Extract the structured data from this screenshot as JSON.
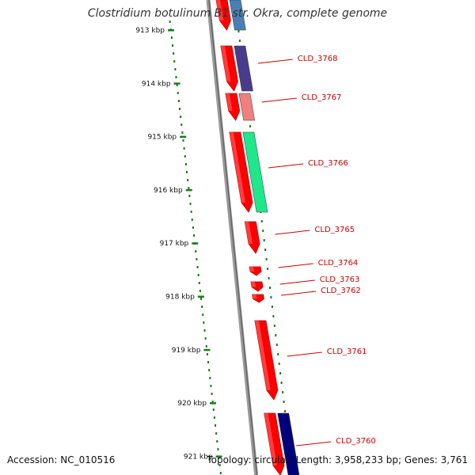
{
  "title": "Clostridium botulinum B1 str. Okra, complete genome",
  "accession": "Accession: NC_010516",
  "summary": "Topology: circular; Length: 3,958,233 bp; Genes: 3,761",
  "colors": {
    "strand": "#ff0000",
    "label": "#cc0000",
    "scale": "#1a7a1a",
    "backbone": "#888888"
  },
  "scale_ticks": [
    {
      "label": "913 kbp"
    },
    {
      "label": "914 kbp"
    },
    {
      "label": "915 kbp"
    },
    {
      "label": "916 kbp"
    },
    {
      "label": "917 kbp"
    },
    {
      "label": "918 kbp"
    },
    {
      "label": "919 kbp"
    },
    {
      "label": "920 kbp"
    },
    {
      "label": "921 kbp"
    }
  ],
  "genes": [
    {
      "label": "",
      "partner_color": "#4a7fb5"
    },
    {
      "label": "CLD_3768",
      "partner_color": "#4a3c8c"
    },
    {
      "label": "CLD_3767",
      "partner_color": "#f08080"
    },
    {
      "label": "CLD_3766",
      "partner_color": "#1ee88a"
    },
    {
      "label": "CLD_3765",
      "partner_color": null
    },
    {
      "label": "CLD_3764",
      "partner_color": null
    },
    {
      "label": "CLD_3763",
      "partner_color": null
    },
    {
      "label": "CLD_3762",
      "partner_color": null
    },
    {
      "label": "CLD_3761",
      "partner_color": null
    },
    {
      "label": "CLD_3760",
      "partner_color": "#00007a"
    }
  ]
}
